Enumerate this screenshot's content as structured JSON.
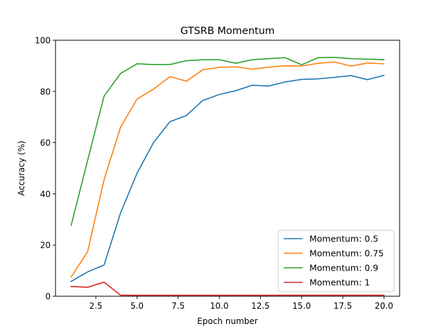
{
  "chart_data": {
    "type": "line",
    "title": "GTSRB Momentum",
    "xlabel": "Epoch number",
    "ylabel": "Accuracy (%)",
    "xlim": [
      0.05,
      20.95
    ],
    "ylim": [
      0,
      100
    ],
    "xticks": [
      2.5,
      5.0,
      7.5,
      10.0,
      12.5,
      15.0,
      17.5,
      20.0
    ],
    "xtick_labels": [
      "2.5",
      "5.0",
      "7.5",
      "10.0",
      "12.5",
      "15.0",
      "17.5",
      "20.0"
    ],
    "yticks": [
      0,
      20,
      40,
      60,
      80,
      100
    ],
    "ytick_labels": [
      "0",
      "20",
      "40",
      "60",
      "80",
      "100"
    ],
    "grid": false,
    "legend_position": "lower-right",
    "x": [
      1,
      2,
      3,
      4,
      5,
      6,
      7,
      8,
      9,
      10,
      11,
      12,
      13,
      14,
      15,
      16,
      17,
      18,
      19,
      20
    ],
    "series": [
      {
        "name": "Momentum: 0.5",
        "color": "#1f77b4",
        "values": [
          5.8,
          9.5,
          12.2,
          32.5,
          48.0,
          60.0,
          68.2,
          70.6,
          76.5,
          78.8,
          80.3,
          82.4,
          82.1,
          83.7,
          84.7,
          84.9,
          85.5,
          86.2,
          84.6,
          86.3
        ]
      },
      {
        "name": "Momentum: 0.75",
        "color": "#ff7f0e",
        "values": [
          7.5,
          17.4,
          45.5,
          66.0,
          77.0,
          80.9,
          85.8,
          84.0,
          88.5,
          89.4,
          89.6,
          88.7,
          89.5,
          90.0,
          89.9,
          91.0,
          91.5,
          89.9,
          91.1,
          90.8
        ]
      },
      {
        "name": "Momentum: 0.9",
        "color": "#2ca02c",
        "values": [
          27.7,
          53.0,
          78.2,
          87.0,
          90.8,
          90.5,
          90.5,
          92.0,
          92.4,
          92.4,
          91.0,
          92.4,
          92.8,
          93.2,
          90.4,
          93.2,
          93.3,
          92.8,
          92.6,
          92.4
        ]
      },
      {
        "name": "Momentum: 1",
        "color": "#d62728",
        "values": [
          3.8,
          3.5,
          5.5,
          0.4,
          0.4,
          0.4,
          0.4,
          0.4,
          0.4,
          0.4,
          0.4,
          0.4,
          0.4,
          0.4,
          0.4,
          0.4,
          0.4,
          0.4,
          0.4,
          0.4
        ]
      }
    ]
  }
}
